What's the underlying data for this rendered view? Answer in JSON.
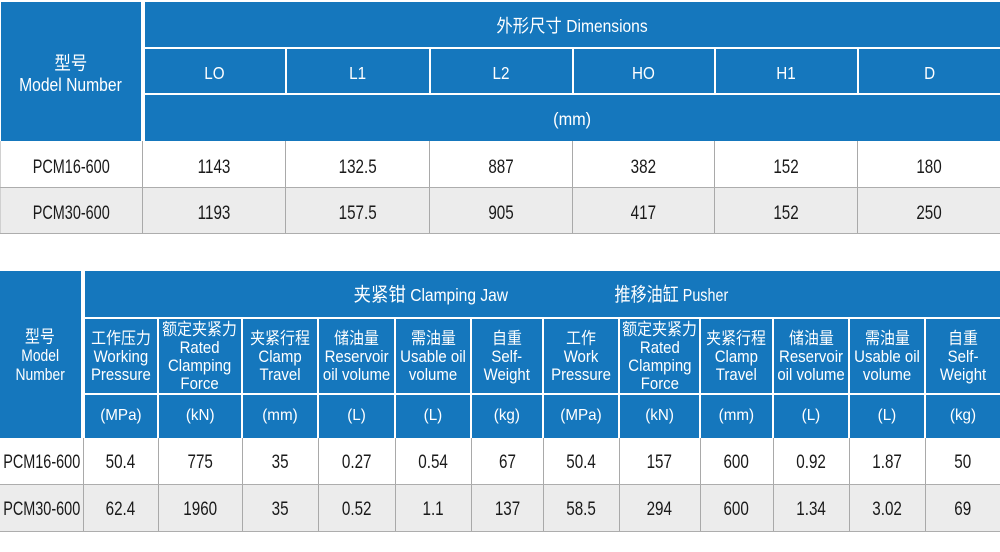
{
  "colors": {
    "header_blue": "#1577bd",
    "row_alt_gray": "#ececec",
    "grid_line_gray": "#b3b3b3",
    "header_text": "#ffffff",
    "body_text": "#1a1a1a"
  },
  "top_table": {
    "model_header": "型号\nModel Number",
    "group_header": "外形尺寸 Dimensions",
    "columns": [
      "LO",
      "L1",
      "L2",
      "HO",
      "H1",
      "D"
    ],
    "units_row": "(mm)",
    "rows": [
      {
        "model": "PCM16-600",
        "values": [
          "1143",
          "132.5",
          "887",
          "382",
          "152",
          "180"
        ]
      },
      {
        "model": "PCM30-600",
        "values": [
          "1193",
          "157.5",
          "905",
          "417",
          "152",
          "250"
        ]
      }
    ]
  },
  "bottom_table": {
    "model_header": "型号\nModel\nNumber",
    "sections": [
      {
        "title": "夹紧钳 Clamping Jaw"
      },
      {
        "title": "推移油缸 Pusher"
      }
    ],
    "columns": [
      {
        "label": "工作压力\nWorking\nPressure",
        "unit": "(MPa)"
      },
      {
        "label": "额定夹紧力\nRated\nClamping\nForce",
        "unit": "(kN)"
      },
      {
        "label": "夹紧行程\nClamp\nTravel",
        "unit": "(mm)"
      },
      {
        "label": "储油量\nReservoir\noil volume",
        "unit": "(L)"
      },
      {
        "label": "需油量\nUsable oil\nvolume",
        "unit": "(L)"
      },
      {
        "label": "自重\nSelf-\nWeight",
        "unit": "(kg)"
      },
      {
        "label": "工作\nWork\nPressure",
        "unit": "(MPa)"
      },
      {
        "label": "额定夹紧力\nRated\nClamping\nForce",
        "unit": "(kN)"
      },
      {
        "label": "夹紧行程\nClamp\nTravel",
        "unit": "(mm)"
      },
      {
        "label": "储油量\nReservoir\noil volume",
        "unit": "(L)"
      },
      {
        "label": "需油量\nUsable oil\nvolume",
        "unit": "(L)"
      },
      {
        "label": "自重\nSelf-\nWeight",
        "unit": "(kg)"
      }
    ],
    "rows": [
      {
        "model": "PCM16-600",
        "values": [
          "50.4",
          "775",
          "35",
          "0.27",
          "0.54",
          "67",
          "50.4",
          "157",
          "600",
          "0.92",
          "1.87",
          "50"
        ]
      },
      {
        "model": "PCM30-600",
        "values": [
          "62.4",
          "1960",
          "35",
          "0.52",
          "1.1",
          "137",
          "58.5",
          "294",
          "600",
          "1.34",
          "3.02",
          "69"
        ]
      }
    ]
  }
}
